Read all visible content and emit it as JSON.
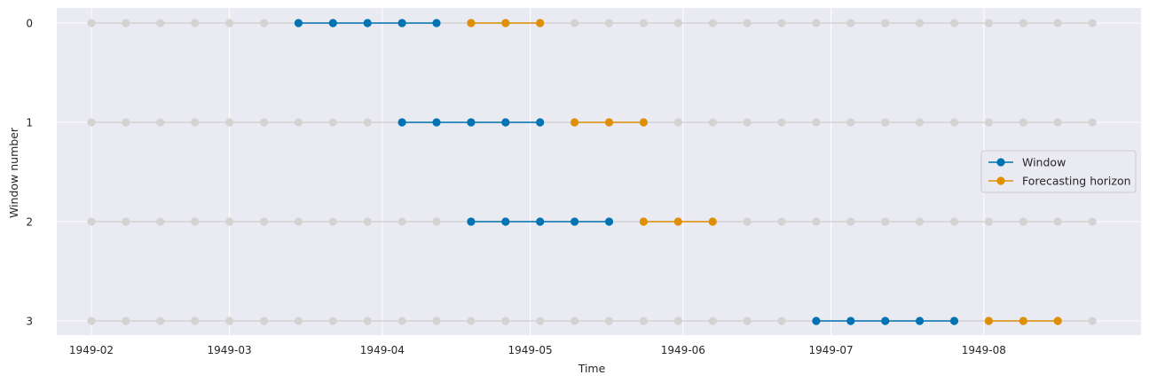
{
  "chart_data": {
    "type": "line",
    "title": "",
    "xlabel": "Time",
    "ylabel": "Window number",
    "x_ticks": [
      "1949-02",
      "1949-03",
      "1949-04",
      "1949-05",
      "1949-06",
      "1949-07",
      "1949-08"
    ],
    "y_ticks": [
      "0",
      "1",
      "2",
      "3"
    ],
    "grid": true,
    "legend_position": "center-right",
    "background_points": {
      "name": "",
      "color": "#d3d3d3",
      "x_start": 0,
      "x_end": 29
    },
    "rows": [
      {
        "window": 0,
        "window_x": [
          6,
          7,
          8,
          9,
          10
        ],
        "horizon_x": [
          11,
          12,
          13
        ]
      },
      {
        "window": 1,
        "window_x": [
          9,
          10,
          11,
          12,
          13
        ],
        "horizon_x": [
          14,
          15,
          16
        ]
      },
      {
        "window": 2,
        "window_x": [
          11,
          12,
          13,
          14,
          15
        ],
        "horizon_x": [
          16,
          17,
          18
        ]
      },
      {
        "window": 3,
        "window_x": [
          21,
          22,
          23,
          24,
          25
        ],
        "horizon_x": [
          26,
          27,
          28
        ]
      }
    ],
    "series": [
      {
        "name": "Window",
        "color": "#0173b2"
      },
      {
        "name": "Forecasting horizon",
        "color": "#de8f05"
      }
    ]
  }
}
